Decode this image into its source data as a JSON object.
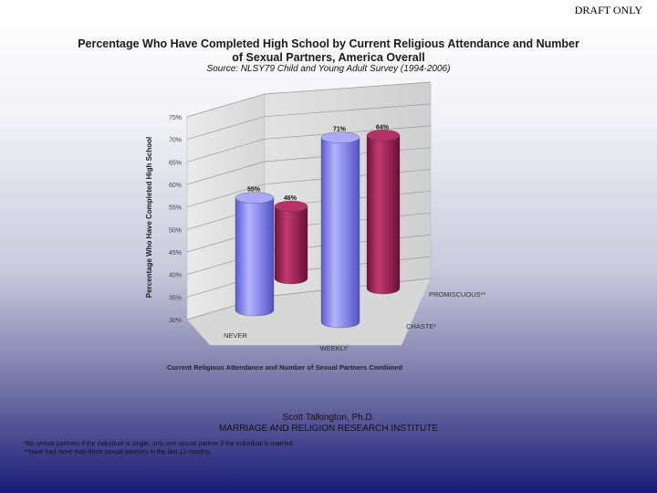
{
  "header": {
    "draft": "DRAFT ONLY"
  },
  "chart_data": {
    "type": "bar",
    "title_line1": "Percentage Who Have Completed High School by Current Religious Attendance and Number",
    "title_line2": "of Sexual Partners, America Overall",
    "subtitle": "Source: NLSY79 Child and Young Adult Survey (1994-2006)",
    "xlabel": "Current Religious Attendance and Number of Sexual Partners Combined",
    "ylabel": "Percentage Who Have Completed High School",
    "categories": [
      "NEVER",
      "WEEKLY"
    ],
    "series": [
      {
        "name": "CHASTE*",
        "values": [
          55,
          71
        ],
        "labels": [
          "55%",
          "71%"
        ],
        "color": "#8e8ef0"
      },
      {
        "name": "PROMISCUOUS**",
        "values": [
          46,
          64
        ],
        "labels": [
          "46%",
          "64%"
        ],
        "color": "#a0285a"
      }
    ],
    "ylim": [
      30,
      75
    ],
    "y_ticks": [
      "75%",
      "70%",
      "65%",
      "60%",
      "55%",
      "50%",
      "45%",
      "40%",
      "35%",
      "30%"
    ],
    "grid": true
  },
  "footer": {
    "author": "Scott Talkington, Ph.D.",
    "institute": "MARRIAGE AND RELIGION RESEARCH INSTITUTE",
    "note1": "*No sexual partners if the individual is single, only one sexual partner if the individual is married.",
    "note2": "**Have had more than three sexual partners in the last 12 months."
  }
}
